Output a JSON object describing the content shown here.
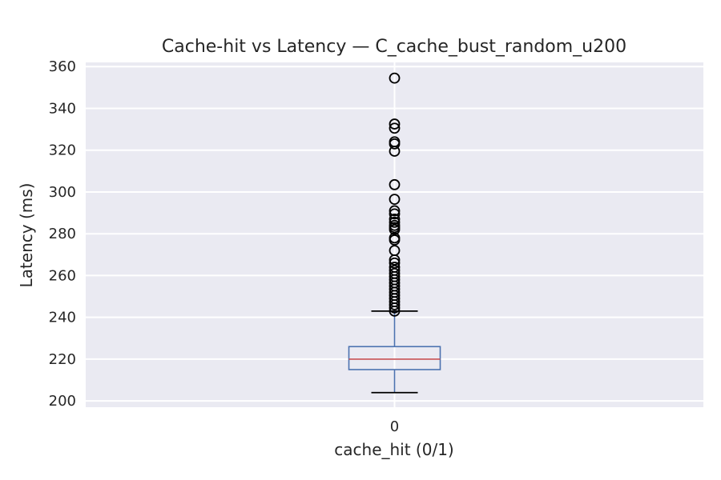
{
  "chart_data": {
    "type": "box",
    "title": "Cache-hit vs Latency — C_cache_bust_random_u200",
    "xlabel": "cache_hit (0/1)",
    "ylabel": "Latency (ms)",
    "categories": [
      "0"
    ],
    "ylim": [
      197,
      362
    ],
    "yticks": [
      200,
      220,
      240,
      260,
      280,
      300,
      320,
      340,
      360
    ],
    "grid": true,
    "box": {
      "category": "0",
      "whisker_low": 204,
      "q1": 215,
      "median": 220,
      "q3": 226,
      "whisker_high": 243
    },
    "outliers": [
      354.5,
      332.5,
      330.5,
      324,
      323,
      319.5,
      303.5,
      296.5,
      291,
      289.5,
      287,
      285.5,
      284,
      283,
      282,
      278,
      277,
      272,
      267.5,
      266,
      264,
      262.5,
      261,
      259.5,
      258,
      256.5,
      255,
      253.5,
      252,
      250.5,
      249,
      247.5,
      246,
      244.5,
      243
    ],
    "colors": {
      "background": "#eaeaf2",
      "grid": "#ffffff",
      "box": "#4c72b0",
      "median": "#c44e52",
      "whisker_cap": "#000000",
      "outlier": "#000000"
    }
  }
}
